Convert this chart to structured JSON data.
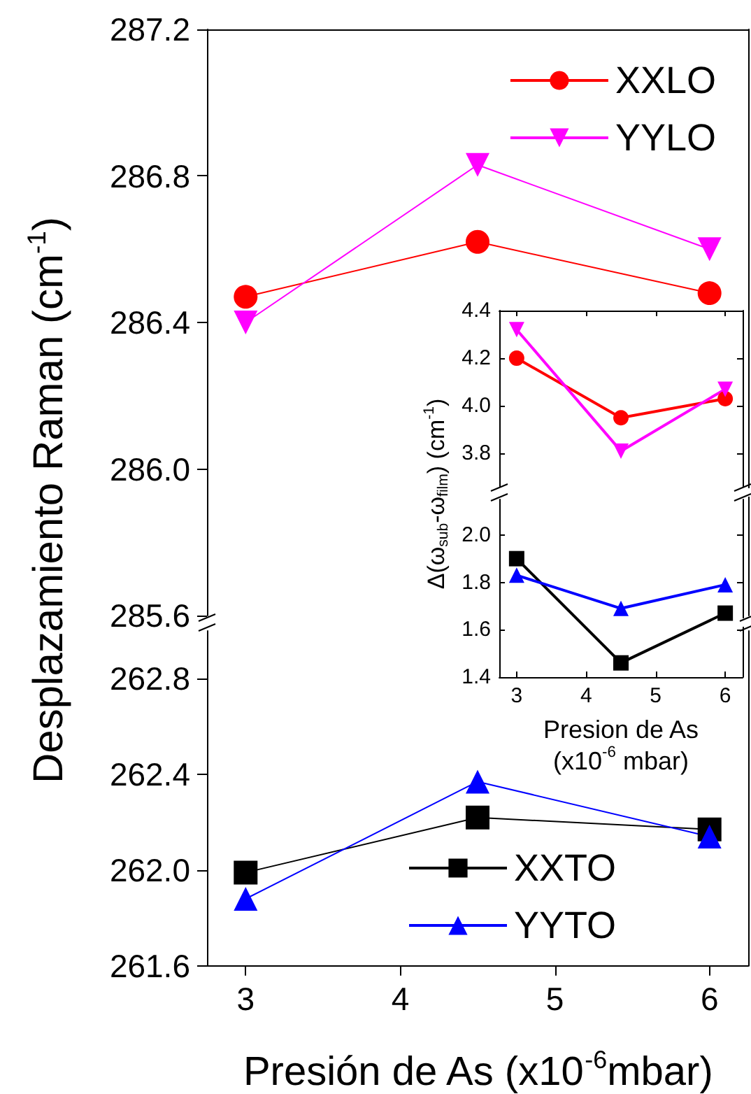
{
  "chart_data": [
    {
      "type": "line",
      "x": [
        3,
        4.5,
        6
      ],
      "xlim": [
        2.75,
        6.25
      ],
      "xticks": [
        3,
        4,
        5,
        6
      ],
      "ylim": [
        285.6,
        287.2
      ],
      "yticks": [
        285.6,
        {
          "value": 286.0,
          "label": "286.0"
        },
        286.4,
        286.8,
        287.2
      ],
      "ylabel": "Desplazamiento Raman (cm$^{-1}$)",
      "tick_labels": "y",
      "legend": "top right",
      "grid": false,
      "series": [
        {
          "name": "XXLO",
          "color": "#ff0000",
          "marker": "circle",
          "values": [
            286.47,
            286.62,
            286.48
          ]
        },
        {
          "name": "YYLO",
          "color": "#ff00ff",
          "marker": "triangle-down",
          "values": [
            286.4,
            286.83,
            286.6
          ]
        }
      ]
    },
    {
      "type": "line",
      "x": [
        3,
        4.5,
        6
      ],
      "xlim": [
        2.75,
        6.25
      ],
      "xticks": [
        3,
        4,
        5,
        6
      ],
      "ylim": [
        261.6,
        263.0
      ],
      "yticks": [
        261.6,
        {
          "value": 262.0,
          "label": "262.0"
        },
        262.4,
        262.8
      ],
      "xlabel": "Presión de As (x10$^{-6}$mbar)",
      "legend": "bottom",
      "grid": false,
      "series": [
        {
          "name": "XXTO",
          "color": "#000000",
          "marker": "square",
          "values": [
            261.99,
            262.22,
            262.17
          ]
        },
        {
          "name": "YYTO",
          "color": "#0000ff",
          "marker": "triangle",
          "values": [
            261.88,
            262.37,
            262.14
          ]
        }
      ]
    },
    {
      "type": "line",
      "x": [
        3,
        4.5,
        6
      ],
      "xlim": [
        2.75,
        6.25
      ],
      "xticks": [
        3,
        4,
        5,
        6
      ],
      "ylim": [
        3.66,
        4.4
      ],
      "yticks": [
        3.8,
        {
          "value": 4.0,
          "label": "4.0"
        },
        4.2,
        4.4
      ],
      "ylabel": "Δ(ω$_{sub}$-ω$_{film}$) (cm$^{-1}$)",
      "tick_labels": "y",
      "grid": false,
      "series": [
        {
          "color": "#ff0000",
          "marker": "circle",
          "values": [
            4.2,
            3.95,
            4.03
          ]
        },
        {
          "color": "#ff00ff",
          "marker": "triangle-down",
          "values": [
            4.32,
            3.81,
            4.07
          ]
        }
      ]
    },
    {
      "type": "line",
      "x": [
        3,
        4.5,
        6
      ],
      "xlim": [
        2.75,
        6.25
      ],
      "xticks": [
        3,
        4,
        5,
        6
      ],
      "ylim": [
        1.4,
        2.15
      ],
      "yticks": [
        1.4,
        1.6,
        1.8,
        {
          "value": 2.0,
          "label": "2.0"
        }
      ],
      "xlabel": "Presion de As\n(x10$^{-6}$ mbar)",
      "grid": false,
      "series": [
        {
          "color": "#000000",
          "marker": "square",
          "values": [
            1.9,
            1.46,
            1.67
          ]
        },
        {
          "color": "#0000ff",
          "marker": "triangle",
          "values": [
            1.83,
            1.69,
            1.79
          ]
        }
      ]
    }
  ]
}
